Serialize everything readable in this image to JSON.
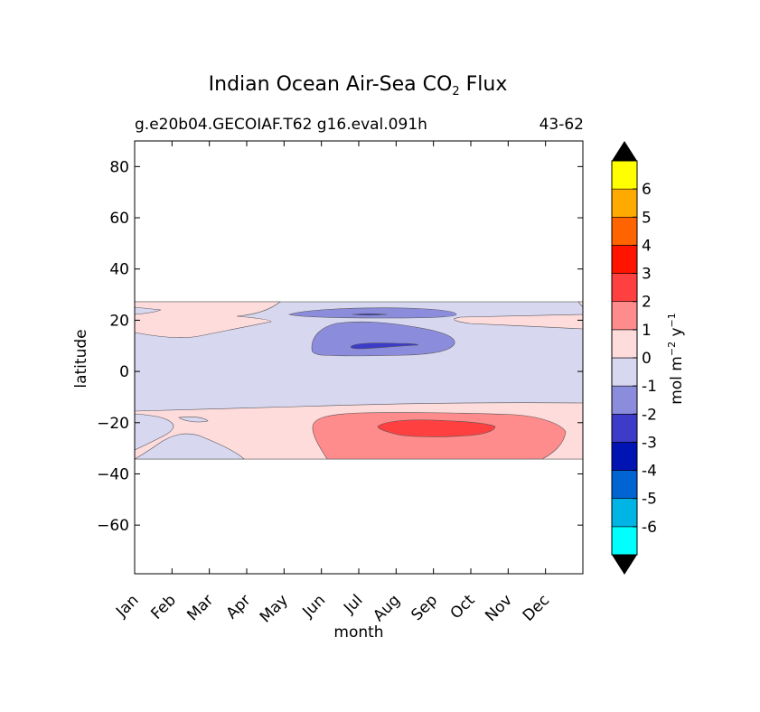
{
  "chart_data": {
    "type": "heatmap",
    "title": "Indian Ocean Air-Sea CO",
    "title_sub": "2",
    "title_suffix": " Flux",
    "subtitle_left": "g.e20b04.GECOIAF.T62 g16.eval.091h",
    "subtitle_right": "43-62",
    "xlabel": "month",
    "ylabel": "latitude",
    "x_ticks": [
      "Jan",
      "Feb",
      "Mar",
      "Apr",
      "May",
      "Jun",
      "Jul",
      "Aug",
      "Sep",
      "Oct",
      "Nov",
      "Dec"
    ],
    "y_ticks": [
      80,
      60,
      40,
      20,
      0,
      -20,
      -40,
      -60
    ],
    "y_tick_labels": [
      "80",
      "60",
      "40",
      "20",
      "0",
      "−20",
      "−40",
      "−60"
    ],
    "ylim": [
      -79,
      90
    ],
    "data_lat_range": [
      -34,
      27
    ],
    "colorbar": {
      "label": "mol m",
      "label_sup1": "−2",
      "label_mid": "  y",
      "label_sup2": "−1",
      "levels": [
        -7,
        -6,
        -5,
        -4,
        -3,
        -2,
        -1,
        0,
        1,
        2,
        3,
        4,
        5,
        6,
        7
      ],
      "tick_labels": [
        "-6",
        "-5",
        "-4",
        "-3",
        "-2",
        "-1",
        "0",
        "1",
        "2",
        "3",
        "4",
        "5",
        "6"
      ],
      "colors": [
        "#00ffff",
        "#00b4e6",
        "#0064d2",
        "#0014b4",
        "#3c3cc8",
        "#8c8cdc",
        "#d7d7f0",
        "#ffdcdc",
        "#ff8c8c",
        "#ff4040",
        "#ff1400",
        "#ff6400",
        "#ffaa00",
        "#ffff00"
      ],
      "extend_color": "#000000"
    },
    "regions": [
      {
        "level": "0 to 1",
        "description": "positive flux north of ~15N in Jan-Apr and Oct-Dec"
      },
      {
        "level": "-1 to 0",
        "description": "broad negative band from ~-15 to 27 latitude"
      },
      {
        "level": "-2 to -1",
        "description": "Jun-Sep patch at 8-18N and 22N"
      },
      {
        "level": "-3 to -2",
        "description": "small core around Jul, 10N and 22N"
      },
      {
        "level": "0 to 1",
        "description": "southern band from -34 to -15 latitude"
      },
      {
        "level": "1 to 2",
        "description": "Jun-Oct patch from -34 to -17 latitude"
      },
      {
        "level": "2 to 3",
        "description": "core Jul-Sep near -22 latitude"
      }
    ]
  }
}
